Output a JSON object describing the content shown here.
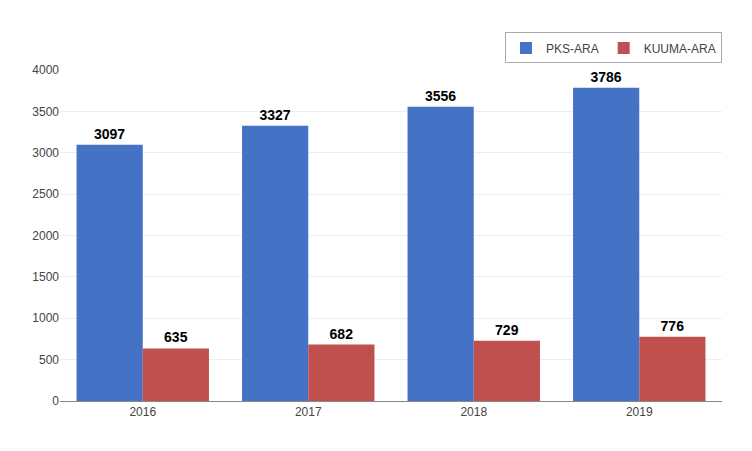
{
  "chart_data": {
    "type": "bar",
    "categories": [
      "2016",
      "2017",
      "2018",
      "2019"
    ],
    "series": [
      {
        "name": "PKS-ARA",
        "color": "#4472C4",
        "values": [
          3097,
          3327,
          3556,
          3786
        ]
      },
      {
        "name": "KUUMA-ARA",
        "color": "#C0504D",
        "values": [
          635,
          682,
          729,
          776
        ]
      }
    ],
    "ylim": [
      0,
      4000
    ],
    "yticks": [
      0,
      500,
      1000,
      1500,
      2000,
      2500,
      3000,
      3500,
      4000
    ],
    "grid": true,
    "legend": "upper right",
    "data_labels": true
  }
}
